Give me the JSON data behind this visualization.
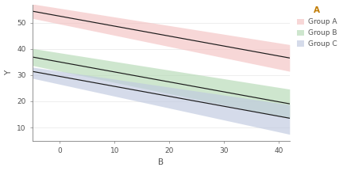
{
  "title": "",
  "xlabel": "B",
  "ylabel": "Y",
  "legend_title": "A",
  "groups": [
    {
      "name": "Group A",
      "intercept": 52.5,
      "slope": -0.38,
      "ci_upper_intercept": 55.5,
      "ci_upper_slope": -0.33,
      "ci_lower_intercept": 49.5,
      "ci_lower_slope": -0.43,
      "line_color": "#1a1a1a",
      "fill_color": "#F4C2C2",
      "fill_alpha": 0.65
    },
    {
      "name": "Group B",
      "intercept": 35.0,
      "slope": -0.38,
      "ci_upper_intercept": 38.5,
      "ci_upper_slope": -0.33,
      "ci_lower_intercept": 31.5,
      "ci_lower_slope": -0.43,
      "line_color": "#1a1a1a",
      "fill_color": "#B5D9B5",
      "fill_alpha": 0.65
    },
    {
      "name": "Group C",
      "intercept": 29.5,
      "slope": -0.38,
      "ci_upper_intercept": 31.5,
      "ci_upper_slope": -0.305,
      "ci_lower_intercept": 26.5,
      "ci_lower_slope": -0.455,
      "line_color": "#1a1a1a",
      "fill_color": "#BFC9E0",
      "fill_alpha": 0.65
    }
  ],
  "xlim": [
    -5,
    42
  ],
  "ylim": [
    5,
    57
  ],
  "xticks": [
    0,
    10,
    20,
    30,
    40
  ],
  "yticks": [
    10,
    20,
    30,
    40,
    50
  ],
  "xticklabels": [
    "0",
    "10",
    "20",
    "30",
    "40"
  ],
  "yticklabels": [
    "10",
    "20",
    "30",
    "40",
    "50"
  ],
  "background_color": "#FFFFFF",
  "panel_background": "#FFFFFF",
  "grid_color": "#EBEBEB",
  "axis_color": "#7F7F7F",
  "legend_title_color": "#C17B00",
  "legend_text_color": "#505050",
  "label_color": "#505050",
  "tick_color": "#505050",
  "figsize": [
    4.32,
    2.16
  ],
  "dpi": 100
}
